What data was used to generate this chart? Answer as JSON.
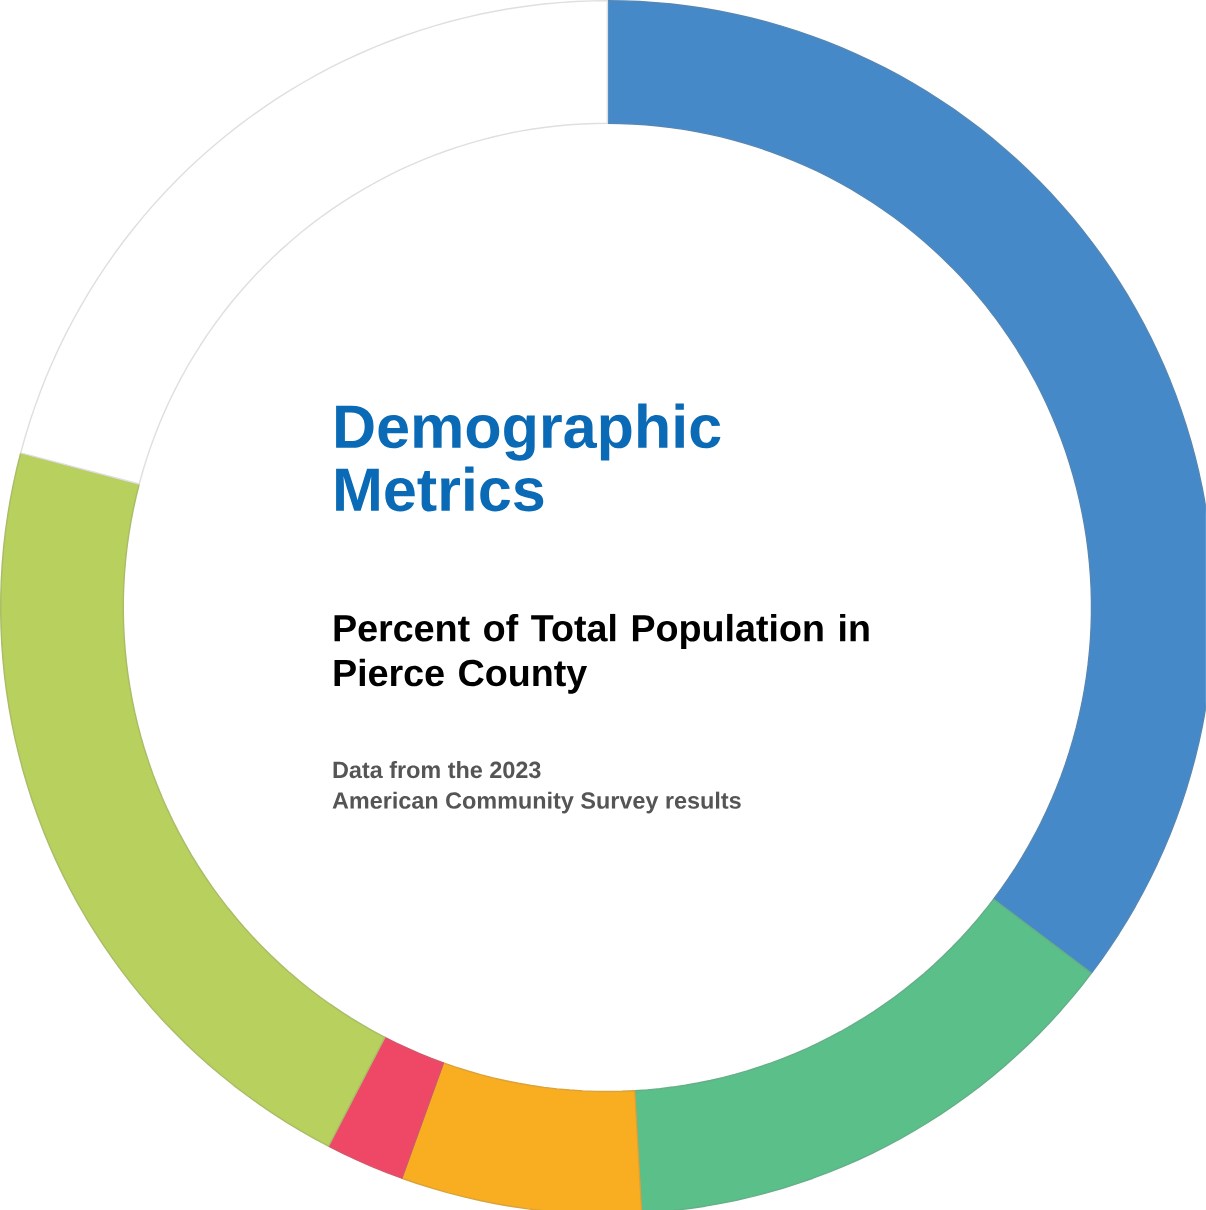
{
  "chart_data": {
    "type": "donut",
    "title": "Demographic Metrics",
    "subtitle": "Percent of Total Population in Pierce County",
    "annotations": [
      "Data from the 2023",
      "American Community Survey results"
    ],
    "categories": [
      null,
      null,
      null,
      null,
      null,
      null
    ],
    "values": [
      35.3,
      13.8,
      6.4,
      2.1,
      21.5,
      20.9
    ],
    "colors": [
      "#4589c8",
      "#5bbf8a",
      "#f9ae22",
      "#ef4866",
      "#b8d05e",
      "#ffffff"
    ]
  }
}
